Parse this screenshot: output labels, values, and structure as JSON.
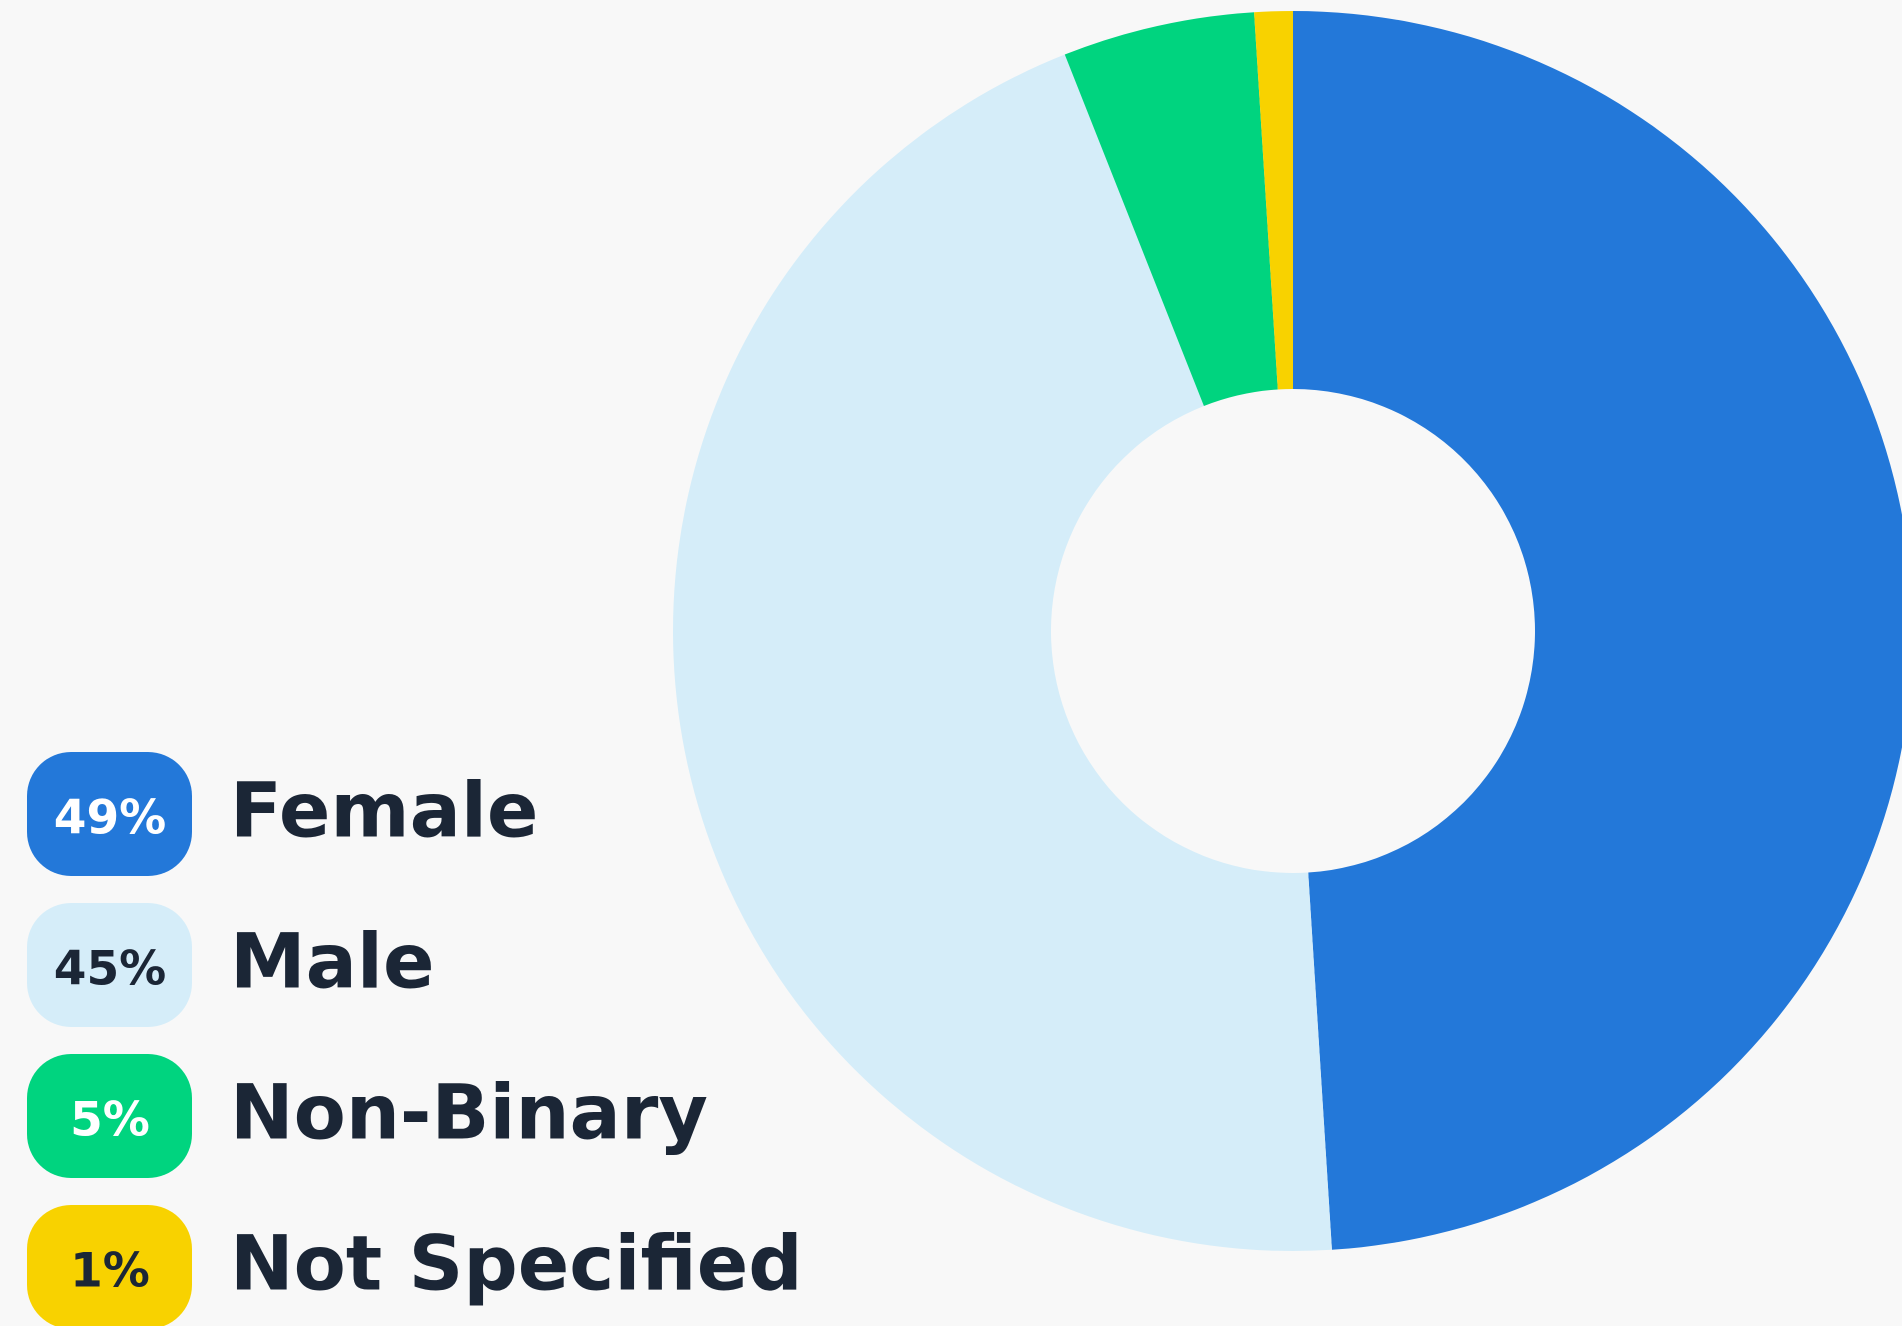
{
  "chart_data": {
    "type": "donut",
    "categories": [
      "Female",
      "Male",
      "Non-Binary",
      "Not Specified"
    ],
    "values": [
      49,
      45,
      5,
      1
    ],
    "value_labels": [
      "49%",
      "45%",
      "5%",
      "1%"
    ],
    "colors": [
      "#2378d9",
      "#d5edf9",
      "#00d47f",
      "#f8d200"
    ]
  }
}
